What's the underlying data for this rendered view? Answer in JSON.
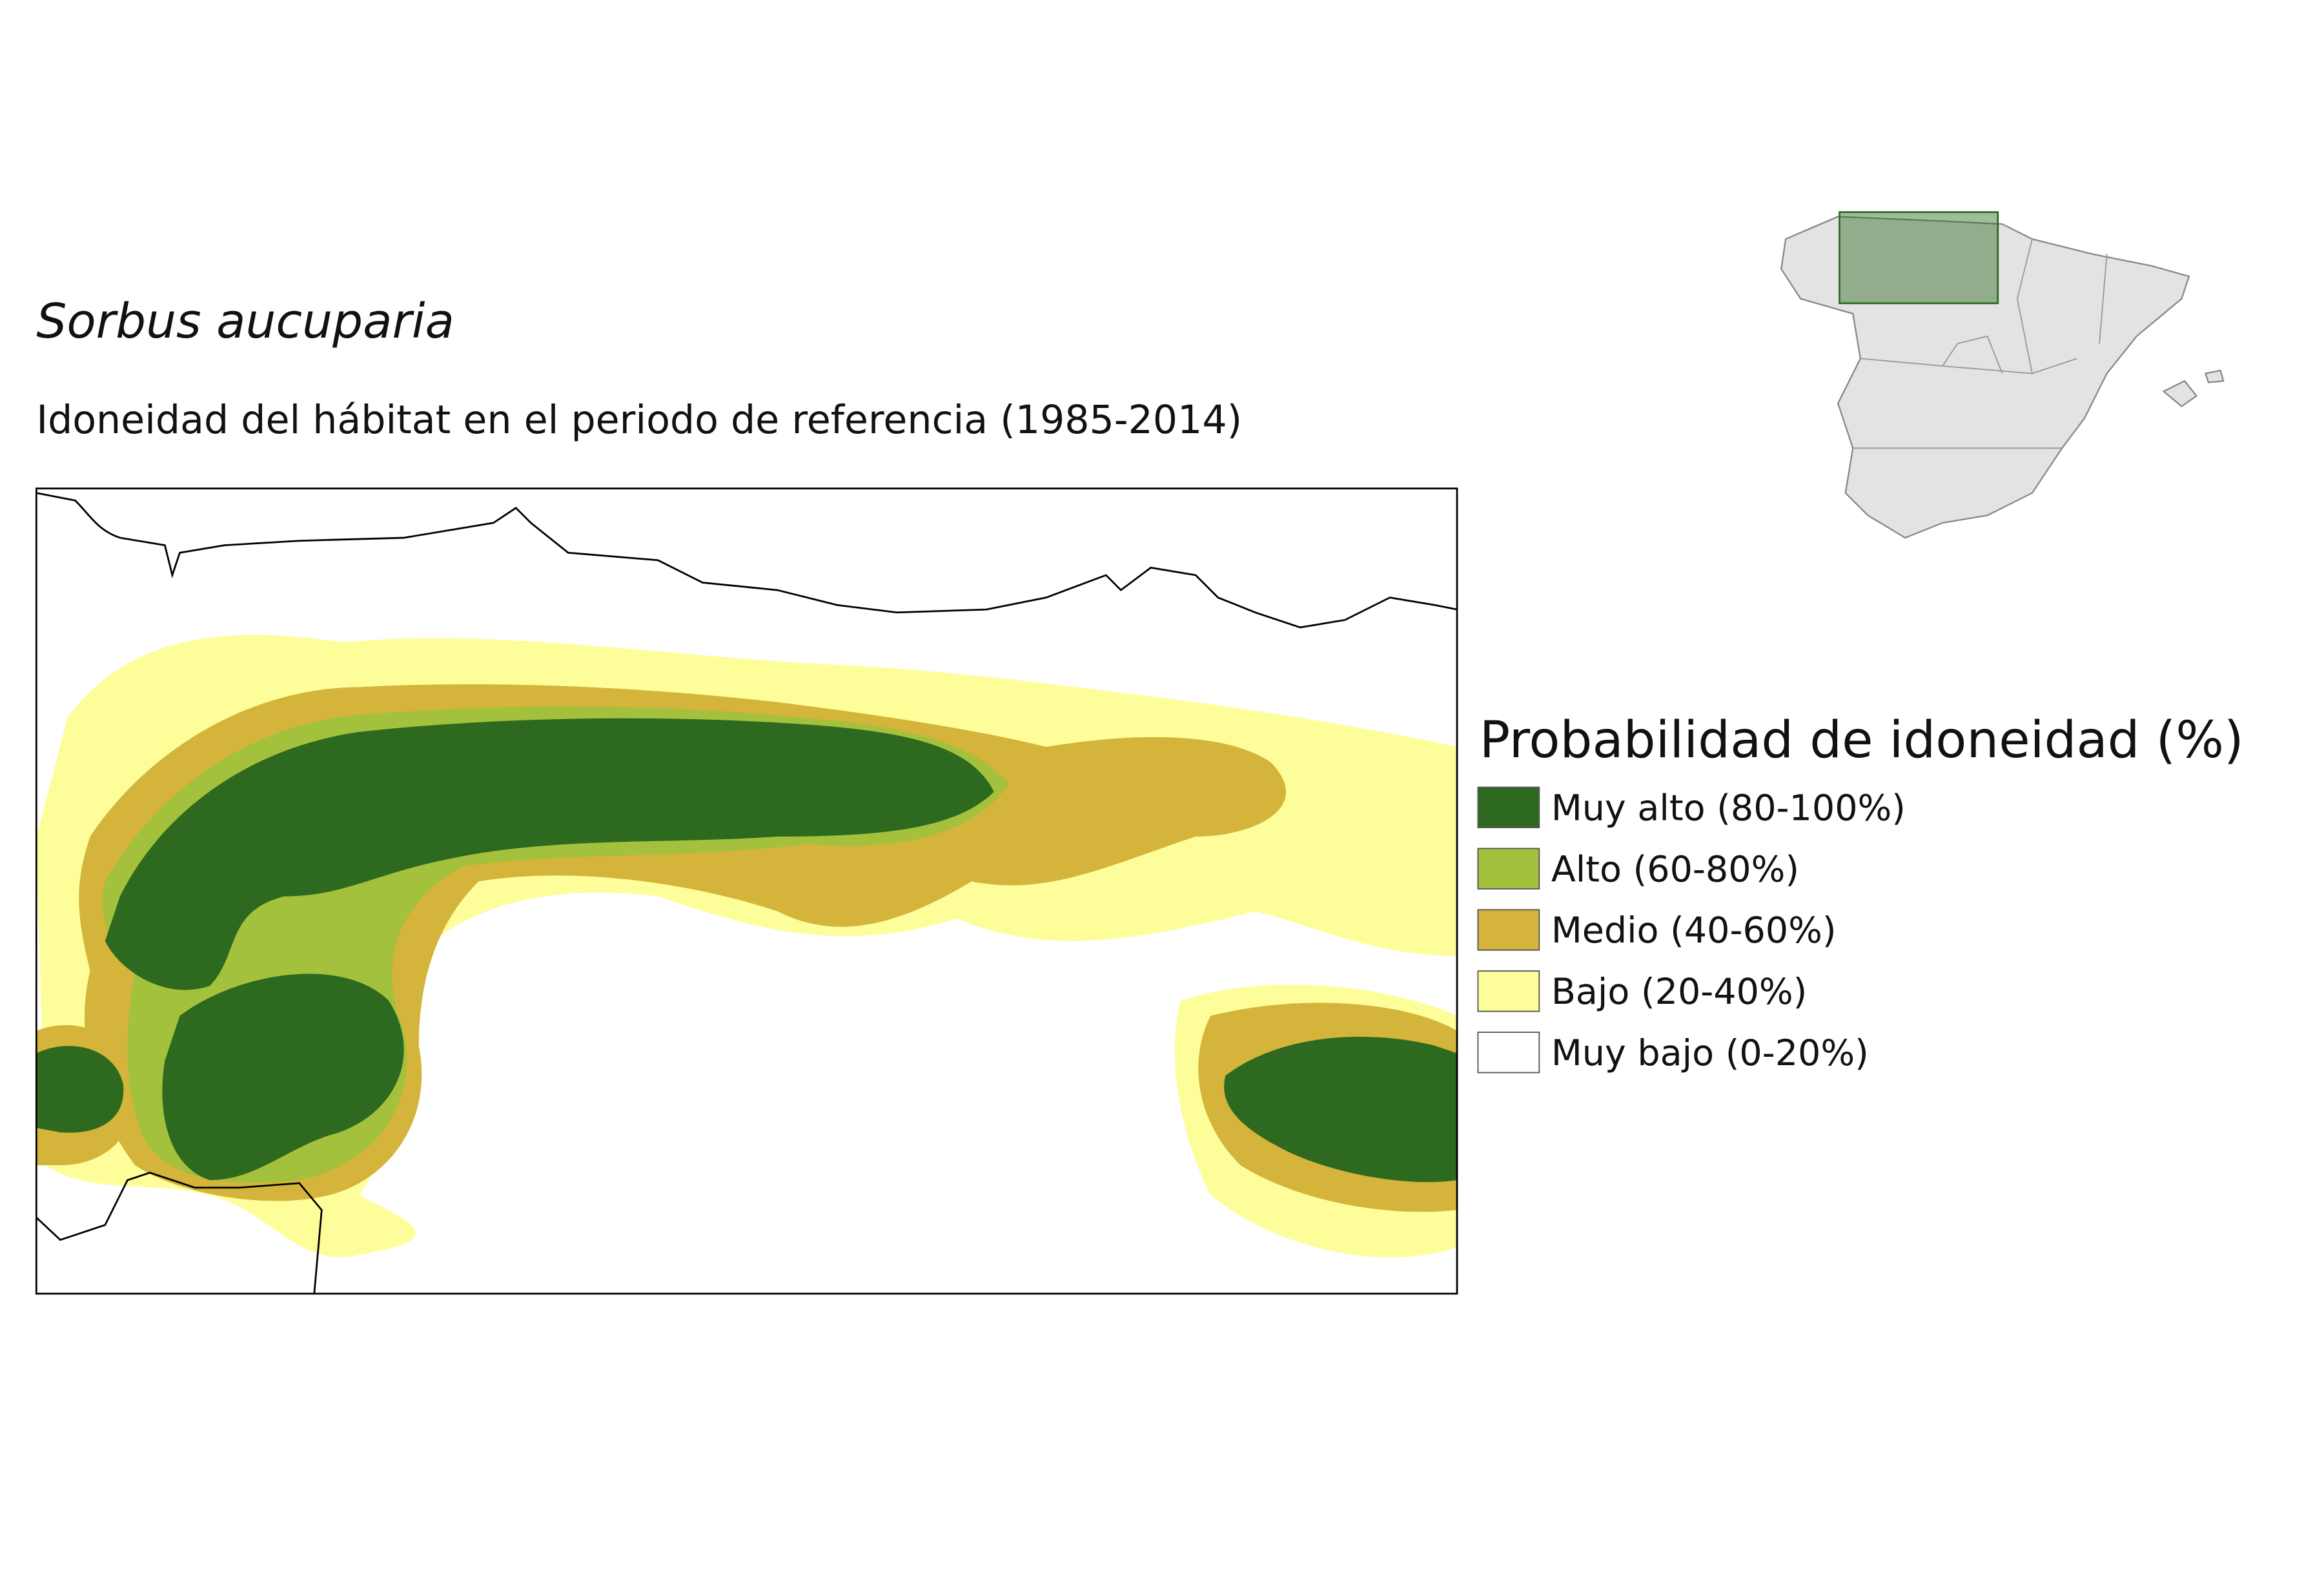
{
  "title": "Sorbus aucuparia",
  "subtitle": "Idoneidad del hábitat en el periodo de referencia (1985-2014)",
  "legend": {
    "title": "Probabilidad de idoneidad (%)",
    "items": [
      {
        "label": "Muy alto (80-100%)",
        "color": "#2d6a1f"
      },
      {
        "label": "Alto (60-80%)",
        "color": "#a3c13c"
      },
      {
        "label": "Medio (40-60%)",
        "color": "#d4b43a"
      },
      {
        "label": "Bajo (20-40%)",
        "color": "#fdfd9a"
      },
      {
        "label": "Muy bajo (0-20%)",
        "color": "#ffffff"
      }
    ]
  }
}
